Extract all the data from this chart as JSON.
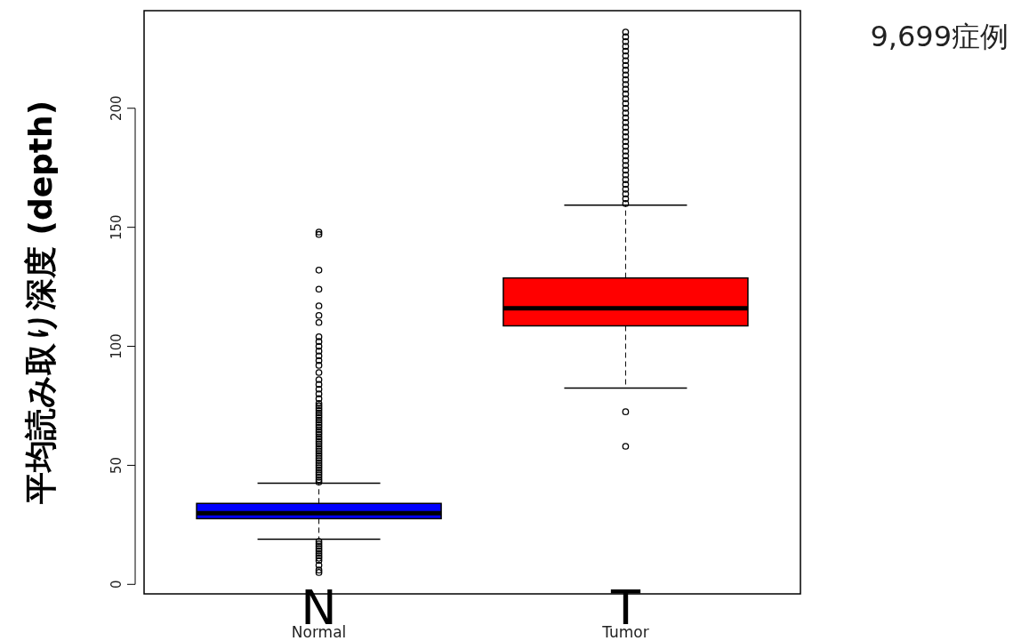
{
  "chart_data": {
    "type": "box",
    "ylabel": "平均読み取り深度 (depth)",
    "categories": [
      "Normal",
      "Tumor"
    ],
    "colors": [
      "#0000ff",
      "#ff0000"
    ],
    "boxes": [
      {
        "low": 19,
        "q1": 27.6,
        "median": 29.9,
        "q3": 34,
        "high": 42.5,
        "outliers": [
          5,
          6,
          8,
          10,
          11,
          12,
          13,
          14,
          15,
          16,
          17,
          18,
          43,
          44,
          45,
          46,
          47,
          48,
          49,
          50,
          51,
          52,
          53,
          54,
          55,
          56,
          57,
          58,
          59,
          60,
          61,
          62,
          63,
          64,
          65,
          66,
          67,
          68,
          69,
          70,
          71,
          72,
          73,
          74,
          75,
          76,
          78,
          80,
          82,
          84,
          86,
          89,
          92,
          94,
          96,
          98,
          100,
          102,
          104,
          110,
          113,
          117,
          124,
          132,
          147,
          148
        ]
      },
      {
        "low": 82.5,
        "q1": 108.6,
        "median": 116,
        "q3": 128.7,
        "high": 159.3,
        "outliers": [
          58,
          72.5,
          160,
          162,
          164,
          166,
          168,
          170,
          172,
          174,
          176,
          178,
          180,
          182,
          184,
          186,
          188,
          190,
          192,
          194,
          196,
          198,
          200,
          202,
          204,
          206,
          208,
          210,
          212,
          214,
          216,
          218,
          220,
          222,
          224,
          226,
          228,
          230,
          232
        ]
      }
    ],
    "ylim": [
      -4,
      241
    ],
    "yticks": [
      0,
      50,
      100,
      150,
      200
    ],
    "grid": false,
    "annotations": [
      "9,699症例",
      "N",
      "T"
    ]
  }
}
